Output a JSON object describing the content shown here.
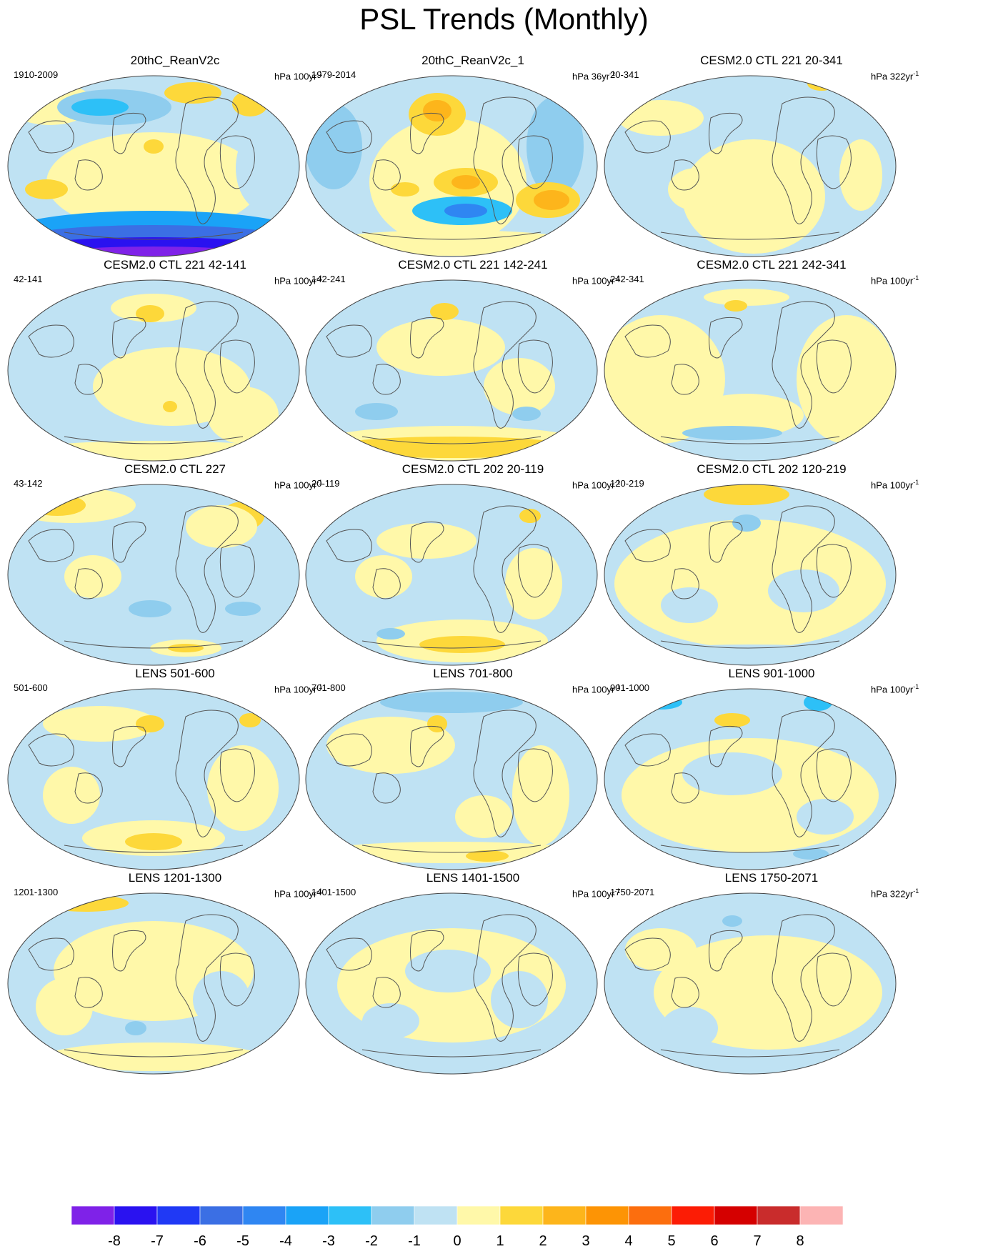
{
  "figure": {
    "title": "PSL Trends (Monthly)"
  },
  "panels": [
    {
      "title": "20thC_ReanV2c",
      "period": "1910-2009",
      "units": "hPa 100yr",
      "units_exp": "-1"
    },
    {
      "title": "20thC_ReanV2c_1",
      "period": "1979-2014",
      "units": "hPa 36yr",
      "units_exp": "-1"
    },
    {
      "title": "CESM2.0 CTL 221 20-341",
      "period": "20-341",
      "units": "hPa 322yr",
      "units_exp": "-1"
    },
    {
      "title": "CESM2.0 CTL 221 42-141",
      "period": "42-141",
      "units": "hPa 100yr",
      "units_exp": "-1"
    },
    {
      "title": "CESM2.0 CTL 221 142-241",
      "period": "142-241",
      "units": "hPa 100yr",
      "units_exp": "-1"
    },
    {
      "title": "CESM2.0 CTL 221 242-341",
      "period": "242-341",
      "units": "hPa 100yr",
      "units_exp": "-1"
    },
    {
      "title": "CESM2.0 CTL 227",
      "period": "43-142",
      "units": "hPa 100yr",
      "units_exp": "-1"
    },
    {
      "title": "CESM2.0 CTL 202 20-119",
      "period": "20-119",
      "units": "hPa 100yr",
      "units_exp": "-1"
    },
    {
      "title": "CESM2.0 CTL 202 120-219",
      "period": "120-219",
      "units": "hPa 100yr",
      "units_exp": "-1"
    },
    {
      "title": "LENS 501-600",
      "period": "501-600",
      "units": "hPa 100yr",
      "units_exp": "-1"
    },
    {
      "title": "LENS 701-800",
      "period": "701-800",
      "units": "hPa 100yr",
      "units_exp": "-1"
    },
    {
      "title": "LENS 901-1000",
      "period": "901-1000",
      "units": "hPa 100yr",
      "units_exp": "-1"
    },
    {
      "title": "LENS 1201-1300",
      "period": "1201-1300",
      "units": "hPa 100yr",
      "units_exp": "-1"
    },
    {
      "title": "LENS 1401-1500",
      "period": "1401-1500",
      "units": "hPa 100yr",
      "units_exp": "-1"
    },
    {
      "title": "LENS 1750-2071",
      "period": "1750-2071",
      "units": "hPa 322yr",
      "units_exp": "-1"
    }
  ],
  "colorbar": {
    "labels": [
      "-8",
      "-7",
      "-6",
      "-5",
      "-4",
      "-3",
      "-2",
      "-1",
      "0",
      "1",
      "2",
      "3",
      "4",
      "5",
      "6",
      "7",
      "8"
    ],
    "colors": [
      "#7f22e8",
      "#2a12f0",
      "#2039f5",
      "#3b6fe4",
      "#2f86f2",
      "#1aa3f7",
      "#2dc0f7",
      "#8fcdee",
      "#bfe2f3",
      "#fff8a9",
      "#fdd83a",
      "#fdb51b",
      "#fd9405",
      "#fc6e0e",
      "#fc1c05",
      "#d50000",
      "#c92c2c",
      "#fcb4b4"
    ]
  }
}
